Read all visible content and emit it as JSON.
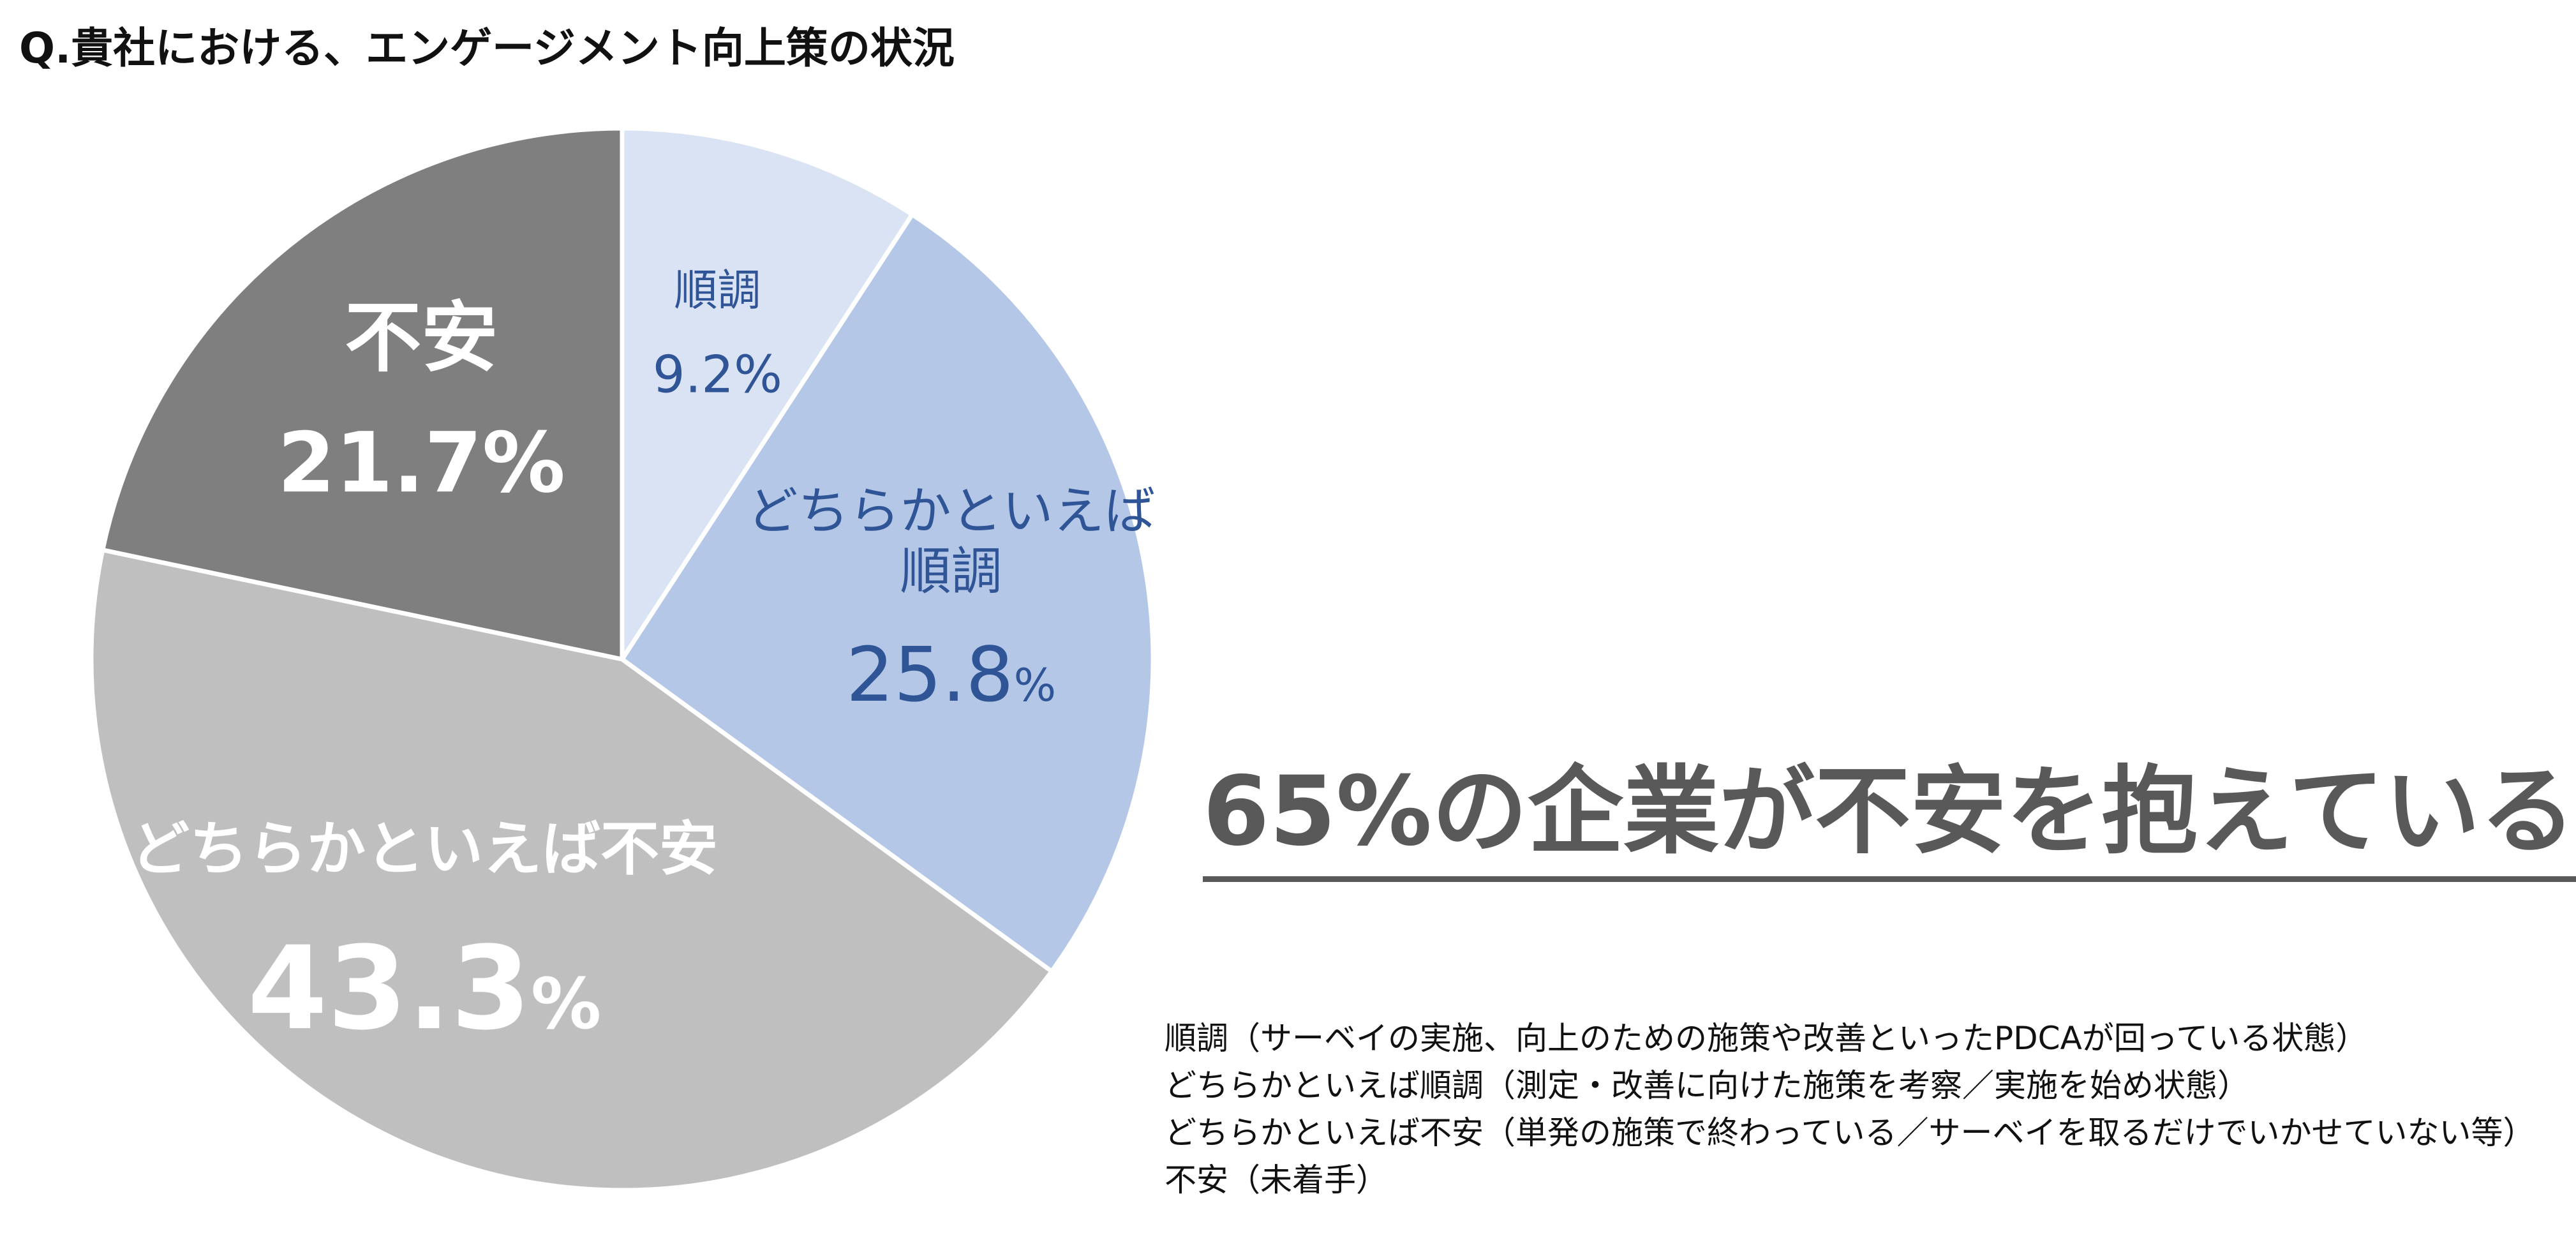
{
  "title": "Q.貴社における、エンゲージメント向上策の状況",
  "headline": "65%の企業が不安を抱えている",
  "legend": [
    "順調（サーベイの実施、向上のための施策や改善といったPDCAが回っている状態）",
    "どちらかといえば順調（測定・改善に向けた施策を考察／実施を始め状態）",
    "どちらかといえば不安（単発の施策で終わっている／サーベイを取るだけでいかせていない等）",
    "不安（未着手）"
  ],
  "chart_data": {
    "type": "pie",
    "title": "Q.貴社における、エンゲージメント向上策の状況",
    "slices": [
      {
        "label": "順調",
        "value": 9.2,
        "value_text": "9.2",
        "pct": "%",
        "color": "#dae3f3",
        "text_color": "#2f5597"
      },
      {
        "label": "どちらかといえば順調",
        "label_lines": [
          "どちらかといえば",
          "順調"
        ],
        "value": 25.8,
        "value_text": "25.8",
        "pct": "%",
        "color": "#b4c7e7",
        "text_color": "#2f5597"
      },
      {
        "label": "どちらかといえば不安",
        "value": 43.3,
        "value_text": "43.3",
        "pct": "%",
        "color": "#bfbfbf",
        "text_color": "#ffffff"
      },
      {
        "label": "不安",
        "value": 21.7,
        "value_text": "21.7",
        "pct": "%",
        "color": "#7f7f7f",
        "text_color": "#ffffff"
      }
    ],
    "start": "12 o'clock",
    "direction": "clockwise"
  }
}
